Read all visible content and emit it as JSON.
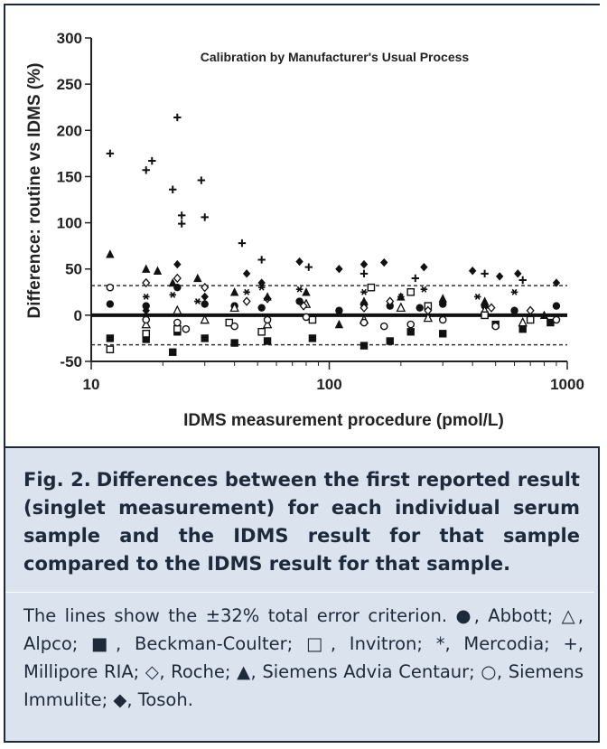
{
  "chart_data": {
    "type": "scatter",
    "title": "Calibration by Manufacturer's Usual Process",
    "xlabel": "IDMS measurement procedure (pmol/L)",
    "ylabel": "Difference: routine vs IDMS (%)",
    "xscale": "log",
    "xlim": [
      10,
      1000
    ],
    "ylim": [
      -50,
      300
    ],
    "xticks": [
      10,
      100,
      1000
    ],
    "yticks": [
      -50,
      0,
      50,
      100,
      150,
      200,
      250,
      300
    ],
    "reference_lines": [
      {
        "y": 0,
        "style": "solid-thick"
      },
      {
        "y": 32,
        "style": "dashed"
      },
      {
        "y": -32,
        "style": "dashed"
      }
    ],
    "grid": false,
    "series": [
      {
        "name": "Abbott",
        "marker": "filled-circle",
        "points": [
          [
            12,
            12
          ],
          [
            17,
            10
          ],
          [
            23,
            30
          ],
          [
            30,
            12
          ],
          [
            40,
            10
          ],
          [
            52,
            8
          ],
          [
            75,
            15
          ],
          [
            110,
            5
          ],
          [
            140,
            12
          ],
          [
            180,
            10
          ],
          [
            240,
            8
          ],
          [
            300,
            12
          ],
          [
            450,
            10
          ],
          [
            600,
            5
          ],
          [
            900,
            10
          ]
        ]
      },
      {
        "name": "Alpco",
        "marker": "open-triangle",
        "points": [
          [
            17,
            -10
          ],
          [
            23,
            5
          ],
          [
            30,
            -5
          ],
          [
            40,
            8
          ],
          [
            55,
            -10
          ],
          [
            80,
            12
          ],
          [
            140,
            -5
          ],
          [
            200,
            8
          ],
          [
            260,
            -3
          ],
          [
            450,
            5
          ],
          [
            650,
            -8
          ]
        ]
      },
      {
        "name": "Beckman-Coulter",
        "marker": "filled-square",
        "points": [
          [
            12,
            -25
          ],
          [
            17,
            -26
          ],
          [
            22,
            -40
          ],
          [
            23,
            -18
          ],
          [
            30,
            -25
          ],
          [
            40,
            -30
          ],
          [
            55,
            -28
          ],
          [
            85,
            -25
          ],
          [
            140,
            -33
          ],
          [
            180,
            -28
          ],
          [
            220,
            -18
          ],
          [
            300,
            -20
          ],
          [
            500,
            -10
          ],
          [
            650,
            -15
          ],
          [
            850,
            -8
          ]
        ]
      },
      {
        "name": "Invitron",
        "marker": "open-square",
        "points": [
          [
            12,
            -37
          ],
          [
            17,
            -20
          ],
          [
            23,
            -15
          ],
          [
            38,
            -8
          ],
          [
            52,
            -18
          ],
          [
            85,
            -5
          ],
          [
            150,
            30
          ],
          [
            220,
            25
          ],
          [
            260,
            10
          ],
          [
            450,
            0
          ],
          [
            700,
            -5
          ]
        ]
      },
      {
        "name": "Mercodia",
        "marker": "asterisk",
        "points": [
          [
            17,
            20
          ],
          [
            22,
            22
          ],
          [
            28,
            15
          ],
          [
            45,
            25
          ],
          [
            52,
            30
          ],
          [
            75,
            28
          ],
          [
            140,
            25
          ],
          [
            200,
            20
          ],
          [
            250,
            28
          ],
          [
            420,
            20
          ],
          [
            600,
            25
          ]
        ]
      },
      {
        "name": "Millipore RIA",
        "marker": "plus",
        "points": [
          [
            12,
            175
          ],
          [
            17,
            157
          ],
          [
            18,
            167
          ],
          [
            22,
            136
          ],
          [
            23,
            214
          ],
          [
            24,
            108
          ],
          [
            24,
            99
          ],
          [
            29,
            146
          ],
          [
            30,
            106
          ],
          [
            43,
            78
          ],
          [
            52,
            60
          ],
          [
            82,
            52
          ],
          [
            140,
            45
          ],
          [
            230,
            40
          ],
          [
            450,
            45
          ],
          [
            650,
            38
          ]
        ]
      },
      {
        "name": "Roche",
        "marker": "open-diamond",
        "points": [
          [
            17,
            35
          ],
          [
            23,
            40
          ],
          [
            30,
            30
          ],
          [
            45,
            15
          ],
          [
            55,
            18
          ],
          [
            78,
            10
          ],
          [
            140,
            8
          ],
          [
            180,
            15
          ],
          [
            260,
            5
          ],
          [
            480,
            8
          ],
          [
            700,
            5
          ]
        ]
      },
      {
        "name": "Siemens Advia Centaur",
        "marker": "filled-triangle",
        "points": [
          [
            12,
            66
          ],
          [
            17,
            50
          ],
          [
            19,
            48
          ],
          [
            22,
            35
          ],
          [
            28,
            40
          ],
          [
            40,
            25
          ],
          [
            55,
            20
          ],
          [
            80,
            25
          ],
          [
            110,
            -10
          ],
          [
            140,
            15
          ],
          [
            200,
            20
          ],
          [
            300,
            18
          ],
          [
            450,
            15
          ],
          [
            800,
            0
          ]
        ]
      },
      {
        "name": "Siemens Immulite",
        "marker": "open-circle",
        "points": [
          [
            12,
            30
          ],
          [
            17,
            -5
          ],
          [
            23,
            -8
          ],
          [
            25,
            -15
          ],
          [
            40,
            -12
          ],
          [
            55,
            -5
          ],
          [
            80,
            -2
          ],
          [
            140,
            -8
          ],
          [
            170,
            -12
          ],
          [
            220,
            -10
          ],
          [
            300,
            -5
          ],
          [
            500,
            -12
          ],
          [
            900,
            -5
          ]
        ]
      },
      {
        "name": "Tosoh",
        "marker": "filled-diamond",
        "points": [
          [
            17,
            5
          ],
          [
            23,
            55
          ],
          [
            30,
            20
          ],
          [
            45,
            45
          ],
          [
            52,
            35
          ],
          [
            75,
            58
          ],
          [
            110,
            50
          ],
          [
            140,
            55
          ],
          [
            170,
            57
          ],
          [
            250,
            52
          ],
          [
            400,
            48
          ],
          [
            520,
            42
          ],
          [
            620,
            45
          ],
          [
            900,
            35
          ]
        ]
      }
    ]
  },
  "caption": {
    "label": "Fig. 2.",
    "title": "Differences between the first reported result (singlet measurement) for each individual serum sample and the IDMS result for that sample compared to the IDMS result for that sample.",
    "body": "The lines show the ±32% total error criterion. ●, Abbott; △, Alpco; ■, Beckman-Coulter; □, Invitron; *, Mercodia; +, Millipore RIA; ◇, Roche; ▲, Siemens Advia Centaur; ○, Siemens Immulite; ◆, Tosoh."
  }
}
